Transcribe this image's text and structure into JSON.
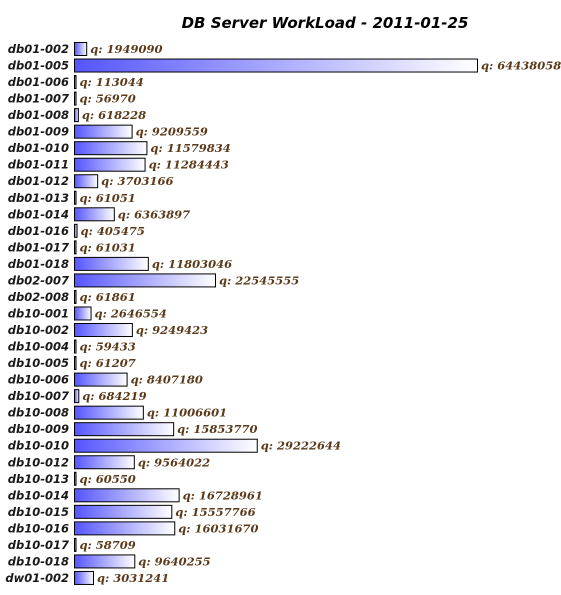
{
  "chart_data": {
    "type": "bar",
    "orientation": "horizontal",
    "title": "DB Server WorkLoad - 2011-01-25",
    "value_prefix": "q: ",
    "bar_gradient": {
      "start": "#5555ff",
      "end": "#ffffff"
    },
    "categories": [
      "db01-002",
      "db01-005",
      "db01-006",
      "db01-007",
      "db01-008",
      "db01-009",
      "db01-010",
      "db01-011",
      "db01-012",
      "db01-013",
      "db01-014",
      "db01-016",
      "db01-017",
      "db01-018",
      "db02-007",
      "db02-008",
      "db10-001",
      "db10-002",
      "db10-004",
      "db10-005",
      "db10-006",
      "db10-007",
      "db10-008",
      "db10-009",
      "db10-010",
      "db10-012",
      "db10-013",
      "db10-014",
      "db10-015",
      "db10-016",
      "db10-017",
      "db10-018",
      "dw01-002"
    ],
    "values": [
      1949090,
      64438058,
      113044,
      56970,
      618228,
      9209559,
      11579834,
      11284443,
      3703166,
      61051,
      6363897,
      405475,
      61031,
      11803046,
      22545555,
      61861,
      2646554,
      9249423,
      59433,
      61207,
      8407180,
      684219,
      11006601,
      15853770,
      29222644,
      9564022,
      60550,
      16728961,
      15557766,
      16031670,
      58709,
      9640255,
      3031241
    ],
    "value_labels": [
      "q: 1949090",
      "q: 64438058",
      "q: 113044",
      "q: 56970",
      "q: 618228",
      "q: 9209559",
      "q: 11579834",
      "q: 11284443",
      "q: 3703166",
      "q: 61051",
      "q: 6363897",
      "q: 405475",
      "q: 61031",
      "q: 11803046",
      "q: 22545555",
      "q: 61861",
      "q: 2646554",
      "q: 9249423",
      "q: 59433",
      "q: 61207",
      "q: 8407180",
      "q: 684219",
      "q: 11006601",
      "q: 15853770",
      "q: 29222644",
      "q: 9564022",
      "q: 60550",
      "q: 16728961",
      "q: 15557766",
      "q: 16031670",
      "q: 58709",
      "q: 9640255",
      "q: 3031241"
    ],
    "xlim": [
      0,
      64438058
    ],
    "grid": false,
    "legend": "none"
  }
}
